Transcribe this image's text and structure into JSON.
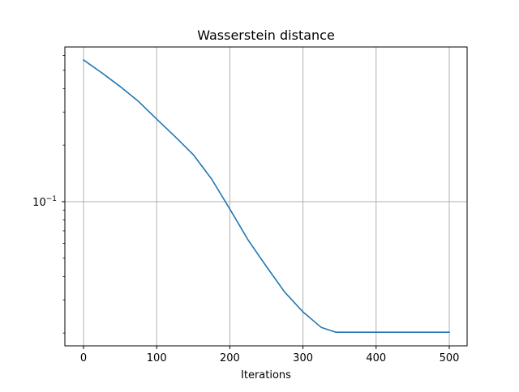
{
  "chart_data": {
    "type": "line",
    "title": "Wasserstein distance",
    "xlabel": "Iterations",
    "ylabel": "",
    "xscale": "linear",
    "yscale": "log",
    "xlim": [
      -25,
      525
    ],
    "ylim": [
      0.0175,
      0.75
    ],
    "grid": true,
    "legend": null,
    "x_ticks": [
      0,
      100,
      200,
      300,
      400,
      500
    ],
    "x_tick_labels": [
      "0",
      "100",
      "200",
      "300",
      "400",
      "500"
    ],
    "y_major_ticks": [
      0.1
    ],
    "y_tick_labels": [
      "10^-1"
    ],
    "y_minor_ticks": [
      0.02,
      0.03,
      0.04,
      0.05,
      0.06,
      0.07,
      0.08,
      0.09,
      0.2,
      0.3,
      0.4,
      0.5,
      0.6
    ],
    "series": [
      {
        "name": "Wasserstein distance",
        "color": "#1f77b4",
        "x": [
          0,
          25,
          50,
          75,
          100,
          125,
          150,
          175,
          200,
          225,
          250,
          275,
          300,
          325,
          345,
          375,
          400,
          450,
          500
        ],
        "values": [
          0.568,
          0.485,
          0.41,
          0.342,
          0.275,
          0.222,
          0.178,
          0.132,
          0.0914,
          0.0625,
          0.0452,
          0.033,
          0.0259,
          0.0214,
          0.0202,
          0.0202,
          0.0202,
          0.0202,
          0.0202
        ]
      }
    ]
  },
  "labels": {
    "title": "Wasserstein distance",
    "xlabel": "Iterations",
    "ytick_base": "10",
    "ytick_exp": "−1"
  },
  "colors": {
    "line": "#1f77b4",
    "grid": "#b0b0b0",
    "axes": "#000000"
  }
}
